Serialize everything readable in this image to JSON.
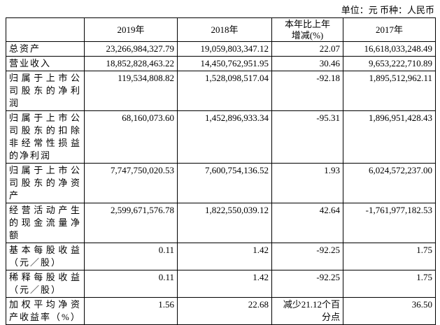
{
  "unit_note": "单位：元  币种：人民币",
  "table": {
    "header": [
      "2019年",
      "2018年",
      "本年比上年增减(%)",
      "2017年"
    ],
    "rows": [
      [
        "总资产",
        "23,266,984,327.79",
        "19,059,803,347.12",
        "22.07",
        "16,618,033,248.49"
      ],
      [
        "营业收入",
        "18,852,828,463.22",
        "14,450,762,951.95",
        "30.46",
        "9,653,222,710.89"
      ],
      [
        "归属于上市公司股东的净利润",
        "119,534,808.82",
        "1,528,098,517.04",
        "-92.18",
        "1,895,512,962.11"
      ],
      [
        "归属于上市公司股东的扣除非经常性损益的净利润",
        "68,160,073.60",
        "1,452,896,933.34",
        "-95.31",
        "1,896,951,428.43"
      ],
      [
        "归属于上市公司股东的净资产",
        "7,747,750,020.53",
        "7,600,754,136.52",
        "1.93",
        "6,024,572,237.00"
      ],
      [
        "经营活动产生的现金流量净额",
        "2,599,671,576.78",
        "1,822,550,039.12",
        "42.64",
        "-1,761,977,182.53"
      ],
      [
        "基本每股收益（元／股）",
        "0.11",
        "1.42",
        "-92.25",
        "1.75"
      ],
      [
        "稀释每股收益（元／股）",
        "0.11",
        "1.42",
        "-92.25",
        "1.75"
      ],
      [
        "加权平均净资产收益率（%）",
        "1.56",
        "22.68",
        "减少21.12个百分点",
        "36.50"
      ]
    ]
  }
}
